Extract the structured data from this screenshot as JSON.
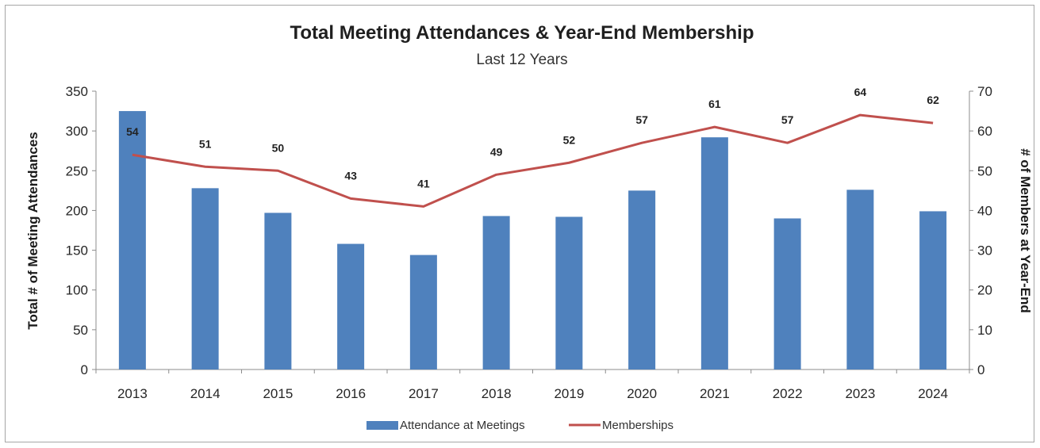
{
  "chart_data": {
    "type": "bar+line",
    "title": "Total Meeting Attendances & Year-End Membership",
    "subtitle": "Last 12 Years",
    "categories": [
      "2013",
      "2014",
      "2015",
      "2016",
      "2017",
      "2018",
      "2019",
      "2020",
      "2021",
      "2022",
      "2023",
      "2024"
    ],
    "series": [
      {
        "name": "Attendance at Meetings",
        "type": "bar",
        "axis": "left",
        "color": "#4f81bd",
        "values": [
          325,
          228,
          197,
          158,
          144,
          193,
          192,
          225,
          292,
          190,
          226,
          199
        ]
      },
      {
        "name": "Memberships",
        "type": "line",
        "axis": "right",
        "color": "#c0504d",
        "values": [
          54,
          51,
          50,
          43,
          41,
          49,
          52,
          57,
          61,
          57,
          64,
          62
        ]
      }
    ],
    "ylabel": "Total # of Meeting Attendances",
    "y2label": "# of Members at Year-End",
    "ylim": [
      0,
      350
    ],
    "y2lim": [
      0,
      70
    ],
    "yticks": [
      0,
      50,
      100,
      150,
      200,
      250,
      300,
      350
    ],
    "y2ticks": [
      0,
      10,
      20,
      30,
      40,
      50,
      60,
      70
    ],
    "grid": false,
    "legend": "bottom"
  }
}
